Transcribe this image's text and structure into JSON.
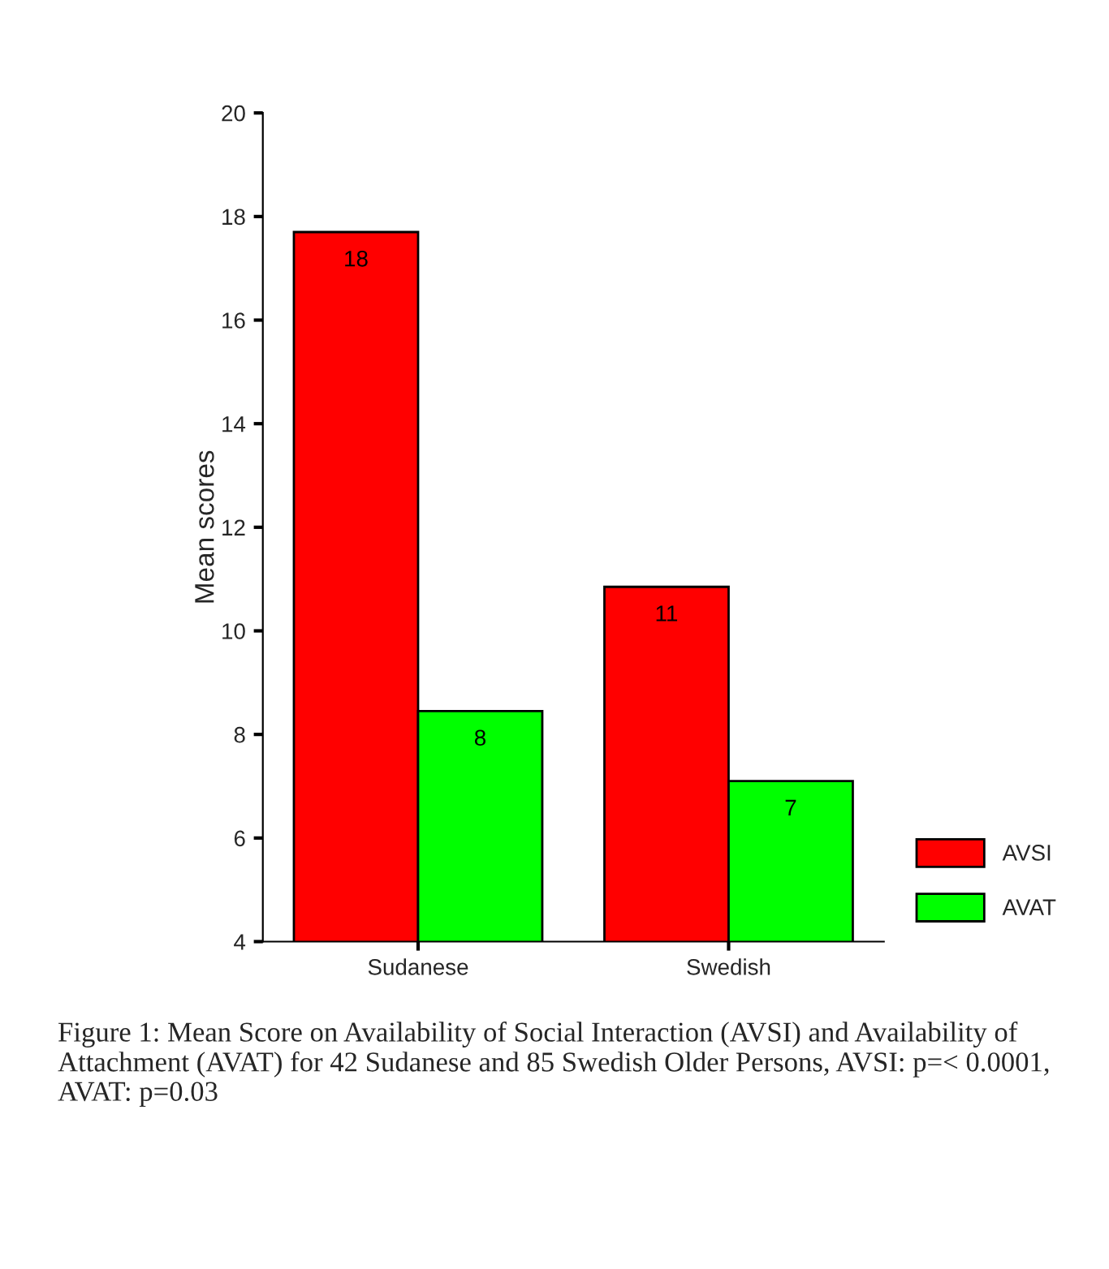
{
  "chart_data": {
    "type": "bar",
    "ylabel": "Mean scores",
    "categories": [
      "Sudanese",
      "Swedish"
    ],
    "series": [
      {
        "name": "AVSI",
        "color": "#ff0000",
        "values": [
          17.7,
          10.85
        ],
        "value_labels": [
          "18",
          "11"
        ]
      },
      {
        "name": "AVAT",
        "color": "#00ff00",
        "values": [
          8.45,
          7.1
        ],
        "value_labels": [
          "8",
          "7"
        ]
      }
    ],
    "ylim": [
      4,
      20
    ],
    "yticks": [
      4,
      6,
      8,
      10,
      12,
      14,
      16,
      18,
      20
    ],
    "grid": false,
    "legend": "bottom right",
    "annotations": [
      "Figure 1: Mean Score on Availability of Social Interaction (AVSI) and Availability of Attachment (AVAT) for 42 Sudanese and 85 Swedish Older Persons, AVSI: p=< 0.0001, AVAT: p=0.03"
    ]
  }
}
